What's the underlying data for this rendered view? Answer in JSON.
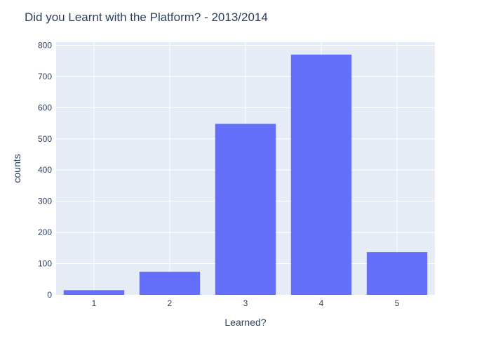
{
  "chart_data": {
    "type": "bar",
    "title": "Did you Learnt with the Platform?  - 2013/2014",
    "xlabel": "Learned?",
    "ylabel": "counts",
    "categories": [
      "1",
      "2",
      "3",
      "4",
      "5"
    ],
    "values": [
      15,
      74,
      548,
      770,
      137
    ],
    "ylim": [
      0,
      810
    ],
    "yticks": [
      0,
      100,
      200,
      300,
      400,
      500,
      600,
      700,
      800
    ],
    "grid": true,
    "legend": "none",
    "colors": {
      "bar": "#636efa",
      "plot_background": "#e5ecf6",
      "grid": "#ffffff",
      "text": "#2a3f5f"
    }
  }
}
